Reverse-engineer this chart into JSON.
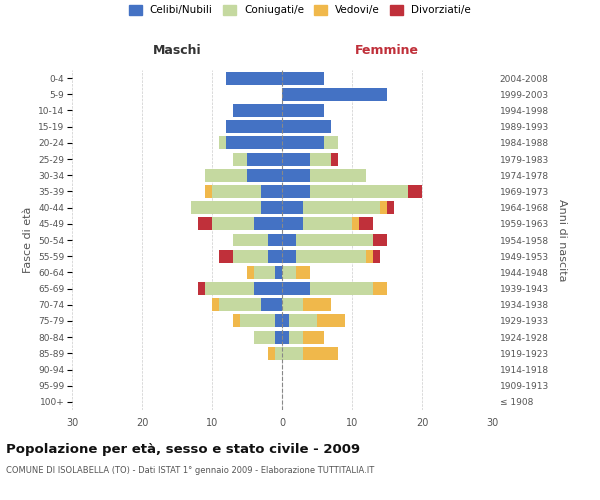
{
  "age_groups": [
    "100+",
    "95-99",
    "90-94",
    "85-89",
    "80-84",
    "75-79",
    "70-74",
    "65-69",
    "60-64",
    "55-59",
    "50-54",
    "45-49",
    "40-44",
    "35-39",
    "30-34",
    "25-29",
    "20-24",
    "15-19",
    "10-14",
    "5-9",
    "0-4"
  ],
  "birth_years": [
    "≤ 1908",
    "1909-1913",
    "1914-1918",
    "1919-1923",
    "1924-1928",
    "1929-1933",
    "1934-1938",
    "1939-1943",
    "1944-1948",
    "1949-1953",
    "1954-1958",
    "1959-1963",
    "1964-1968",
    "1969-1973",
    "1974-1978",
    "1979-1983",
    "1984-1988",
    "1989-1993",
    "1994-1998",
    "1999-2003",
    "2004-2008"
  ],
  "male_celibe": [
    0,
    0,
    0,
    0,
    1,
    1,
    3,
    4,
    1,
    2,
    2,
    4,
    3,
    3,
    5,
    5,
    8,
    8,
    7,
    0,
    8
  ],
  "male_coniugato": [
    0,
    0,
    0,
    1,
    3,
    5,
    6,
    7,
    3,
    5,
    5,
    6,
    10,
    7,
    6,
    2,
    1,
    0,
    0,
    0,
    0
  ],
  "male_vedovo": [
    0,
    0,
    0,
    1,
    0,
    1,
    1,
    0,
    1,
    0,
    0,
    0,
    0,
    1,
    0,
    0,
    0,
    0,
    0,
    0,
    0
  ],
  "male_divorziato": [
    0,
    0,
    0,
    0,
    0,
    0,
    0,
    1,
    0,
    2,
    0,
    2,
    0,
    0,
    0,
    0,
    0,
    0,
    0,
    0,
    0
  ],
  "female_celibe": [
    0,
    0,
    0,
    0,
    1,
    1,
    0,
    4,
    0,
    2,
    2,
    3,
    3,
    4,
    4,
    4,
    6,
    7,
    6,
    15,
    6
  ],
  "female_coniugato": [
    0,
    0,
    0,
    3,
    2,
    4,
    3,
    9,
    2,
    10,
    11,
    7,
    11,
    14,
    8,
    3,
    2,
    0,
    0,
    0,
    0
  ],
  "female_vedovo": [
    0,
    0,
    0,
    5,
    3,
    4,
    4,
    2,
    2,
    1,
    0,
    1,
    1,
    0,
    0,
    0,
    0,
    0,
    0,
    0,
    0
  ],
  "female_divorziato": [
    0,
    0,
    0,
    0,
    0,
    0,
    0,
    0,
    0,
    1,
    2,
    2,
    1,
    2,
    0,
    1,
    0,
    0,
    0,
    0,
    0
  ],
  "color_celibe": "#4472C4",
  "color_coniugato": "#c5d9a0",
  "color_vedovo": "#f0b84b",
  "color_divorziato": "#c0303a",
  "title": "Popolazione per età, sesso e stato civile - 2009",
  "subtitle": "COMUNE DI ISOLABELLA (TO) - Dati ISTAT 1° gennaio 2009 - Elaborazione TUTTITALIA.IT",
  "ylabel_left": "Fasce di età",
  "ylabel_right": "Anni di nascita",
  "xlabel_left": "Maschi",
  "xlabel_right": "Femmine",
  "xlim": 30,
  "bg_color": "#ffffff",
  "grid_color": "#cccccc"
}
